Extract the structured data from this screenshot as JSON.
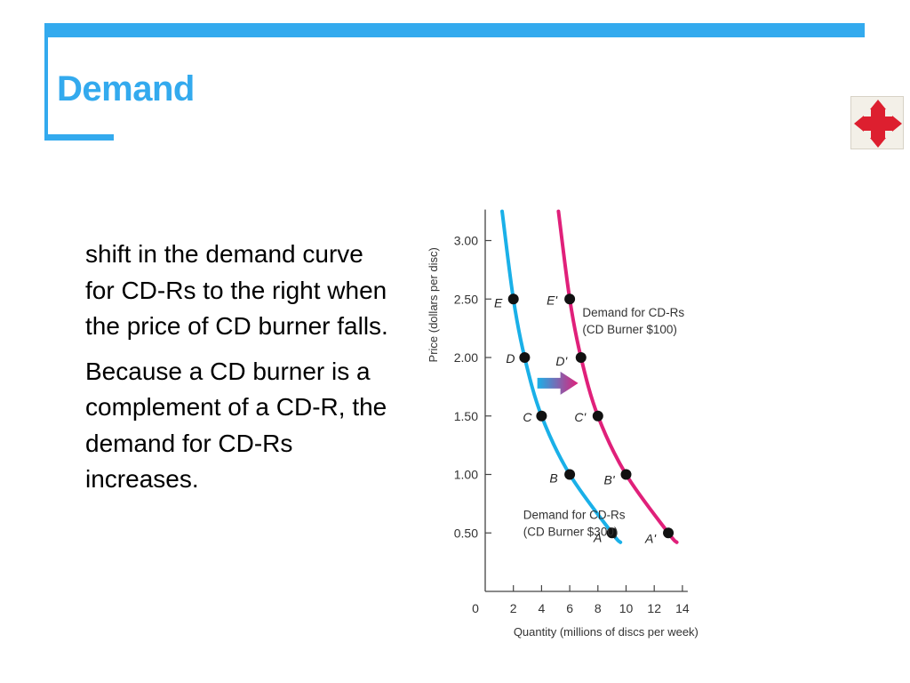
{
  "slide": {
    "title": "Demand",
    "paragraphs": [
      "shift in the demand curve for CD-Rs to the right when the price of CD burner falls.",
      "Because a CD burner is a complement of a CD-R, the demand for CD-Rs increases."
    ]
  },
  "nav": {
    "icon": "four-way-arrow-icon"
  },
  "colors": {
    "accent": "#33aaee",
    "original_curve": "#1ab0e8",
    "new_curve": "#e0207a",
    "nav_arrow": "#dd1f2f"
  },
  "chart_data": {
    "type": "line",
    "xlabel": "Quantity (millions of discs per week)",
    "ylabel": "Price (dollars per disc)",
    "xlim": [
      0,
      14
    ],
    "ylim": [
      0,
      3.25
    ],
    "x_ticks": [
      0,
      2,
      4,
      6,
      8,
      10,
      12,
      14
    ],
    "y_ticks": [
      0.5,
      1.0,
      1.5,
      2.0,
      2.5,
      3.0
    ],
    "y_tick_labels": [
      "0.50",
      "1.00",
      "1.50",
      "2.00",
      "2.50",
      "3.00"
    ],
    "grid": false,
    "series": [
      {
        "name": "Demand for CD-Rs",
        "name_line2": "(CD Burner $300)",
        "color": "#1ab0e8",
        "points": [
          {
            "label": "A",
            "x": 9,
            "y": 0.5
          },
          {
            "label": "B",
            "x": 6,
            "y": 1.0
          },
          {
            "label": "C",
            "x": 4,
            "y": 1.5
          },
          {
            "label": "D",
            "x": 2.8,
            "y": 2.0
          },
          {
            "label": "E",
            "x": 2,
            "y": 2.5
          }
        ],
        "curve_start": {
          "x": 1.2,
          "y": 3.25
        },
        "curve_end": {
          "x": 9.6,
          "y": 0.42
        }
      },
      {
        "name": "Demand for CD-Rs",
        "name_line2": "(CD Burner $100)",
        "color": "#e0207a",
        "points": [
          {
            "label": "A'",
            "x": 13,
            "y": 0.5
          },
          {
            "label": "B'",
            "x": 10,
            "y": 1.0
          },
          {
            "label": "C'",
            "x": 8,
            "y": 1.5
          },
          {
            "label": "D'",
            "x": 6.8,
            "y": 2.0
          },
          {
            "label": "E'",
            "x": 6,
            "y": 2.5
          }
        ],
        "curve_start": {
          "x": 5.2,
          "y": 3.25
        },
        "curve_end": {
          "x": 13.6,
          "y": 0.42
        }
      }
    ],
    "shift_arrow": {
      "from": {
        "x": 3.7,
        "y": 1.78
      },
      "to": {
        "x": 6.6,
        "y": 1.78
      }
    }
  }
}
